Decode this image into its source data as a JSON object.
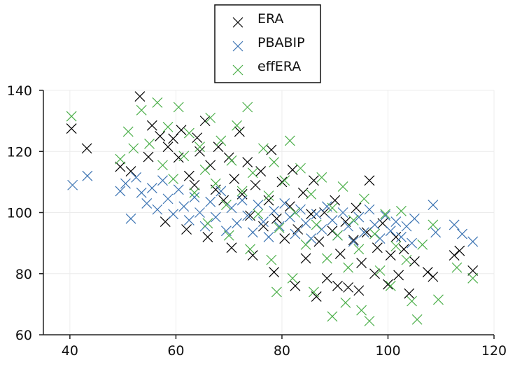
{
  "chart_data": {
    "type": "scatter",
    "title": "",
    "xlabel": "",
    "ylabel": "",
    "xlim": [
      35,
      120
    ],
    "ylim": [
      60,
      140
    ],
    "xticks": [
      40,
      60,
      80,
      100,
      120
    ],
    "yticks": [
      60,
      80,
      100,
      120,
      140
    ],
    "grid": true,
    "legend_position": "top-center",
    "marker": "x",
    "series": [
      {
        "name": "ERA",
        "color": "#000000",
        "points": [
          [
            40.3,
            127.5
          ],
          [
            43.2,
            121.0
          ],
          [
            49.5,
            115.0
          ],
          [
            51.5,
            113.5
          ],
          [
            53.2,
            138.0
          ],
          [
            54.8,
            118.2
          ],
          [
            55.5,
            128.5
          ],
          [
            57.0,
            125.0
          ],
          [
            58.5,
            121.5
          ],
          [
            59.5,
            124.2
          ],
          [
            60.5,
            118.0
          ],
          [
            61.0,
            127.0
          ],
          [
            62.5,
            112.0
          ],
          [
            63.5,
            109.0
          ],
          [
            64.0,
            124.5
          ],
          [
            64.5,
            120.0
          ],
          [
            65.5,
            130.0
          ],
          [
            66.5,
            115.5
          ],
          [
            67.5,
            107.5
          ],
          [
            68.0,
            121.5
          ],
          [
            69.0,
            104.0
          ],
          [
            70.0,
            118.0
          ],
          [
            71.0,
            111.0
          ],
          [
            72.0,
            126.5
          ],
          [
            72.5,
            106.0
          ],
          [
            73.5,
            116.5
          ],
          [
            74.0,
            99.0
          ],
          [
            75.0,
            109.0
          ],
          [
            76.0,
            113.5
          ],
          [
            76.5,
            95.5
          ],
          [
            77.5,
            104.0
          ],
          [
            78.0,
            120.5
          ],
          [
            79.0,
            98.0
          ],
          [
            80.0,
            110.0
          ],
          [
            80.5,
            91.5
          ],
          [
            81.5,
            102.0
          ],
          [
            82.0,
            114.0
          ],
          [
            83.0,
            94.5
          ],
          [
            84.0,
            106.5
          ],
          [
            84.5,
            85.0
          ],
          [
            85.5,
            99.5
          ],
          [
            86.0,
            110.5
          ],
          [
            87.0,
            90.5
          ],
          [
            88.0,
            100.0
          ],
          [
            88.5,
            78.5
          ],
          [
            89.5,
            94.0
          ],
          [
            90.0,
            104.0
          ],
          [
            91.0,
            86.5
          ],
          [
            92.0,
            97.0
          ],
          [
            92.5,
            75.5
          ],
          [
            93.5,
            91.0
          ],
          [
            94.0,
            101.5
          ],
          [
            95.0,
            83.5
          ],
          [
            96.0,
            93.5
          ],
          [
            96.5,
            110.5
          ],
          [
            97.5,
            80.0
          ],
          [
            98.0,
            88.5
          ],
          [
            99.0,
            96.5
          ],
          [
            100.0,
            76.5
          ],
          [
            100.5,
            86.0
          ],
          [
            101.5,
            92.0
          ],
          [
            102.0,
            79.5
          ],
          [
            103.0,
            88.0
          ],
          [
            104.0,
            73.5
          ],
          [
            105.0,
            84.0
          ],
          [
            107.5,
            80.5
          ],
          [
            108.5,
            79.0
          ],
          [
            112.5,
            86.0
          ],
          [
            113.5,
            87.5
          ],
          [
            116.0,
            81.0
          ],
          [
            58.0,
            97.0
          ],
          [
            62.0,
            94.5
          ],
          [
            66.0,
            92.0
          ],
          [
            70.5,
            88.5
          ],
          [
            74.5,
            86.0
          ],
          [
            78.5,
            80.5
          ],
          [
            82.5,
            76.0
          ],
          [
            86.5,
            72.5
          ],
          [
            90.5,
            76.0
          ],
          [
            94.5,
            74.5
          ]
        ]
      },
      {
        "name": "PBABIP",
        "color": "#3b73b2",
        "points": [
          [
            40.5,
            109.0
          ],
          [
            43.3,
            112.0
          ],
          [
            49.5,
            107.0
          ],
          [
            50.5,
            109.5
          ],
          [
            51.5,
            98.0
          ],
          [
            52.5,
            111.5
          ],
          [
            53.5,
            106.5
          ],
          [
            54.5,
            103.0
          ],
          [
            55.5,
            108.0
          ],
          [
            56.5,
            101.0
          ],
          [
            57.5,
            110.5
          ],
          [
            58.5,
            104.5
          ],
          [
            59.5,
            99.5
          ],
          [
            60.5,
            107.5
          ],
          [
            61.5,
            102.0
          ],
          [
            62.5,
            97.5
          ],
          [
            63.5,
            105.0
          ],
          [
            64.5,
            100.0
          ],
          [
            65.5,
            95.5
          ],
          [
            66.5,
            103.5
          ],
          [
            67.5,
            98.5
          ],
          [
            68.5,
            107.0
          ],
          [
            69.5,
            94.0
          ],
          [
            70.5,
            101.5
          ],
          [
            71.5,
            96.5
          ],
          [
            72.5,
            104.0
          ],
          [
            73.5,
            99.0
          ],
          [
            74.5,
            93.5
          ],
          [
            75.5,
            102.5
          ],
          [
            76.5,
            97.0
          ],
          [
            77.5,
            92.0
          ],
          [
            78.5,
            100.5
          ],
          [
            79.5,
            95.5
          ],
          [
            80.5,
            103.0
          ],
          [
            81.5,
            98.5
          ],
          [
            82.5,
            93.0
          ],
          [
            83.5,
            101.0
          ],
          [
            84.5,
            96.5
          ],
          [
            85.5,
            91.5
          ],
          [
            86.5,
            99.5
          ],
          [
            87.5,
            94.5
          ],
          [
            88.5,
            102.0
          ],
          [
            89.5,
            97.5
          ],
          [
            90.5,
            92.5
          ],
          [
            91.5,
            100.0
          ],
          [
            92.5,
            95.5
          ],
          [
            93.5,
            90.5
          ],
          [
            94.5,
            98.5
          ],
          [
            95.5,
            93.5
          ],
          [
            96.5,
            101.0
          ],
          [
            97.5,
            96.0
          ],
          [
            98.5,
            91.5
          ],
          [
            99.5,
            99.0
          ],
          [
            100.5,
            94.0
          ],
          [
            101.5,
            97.0
          ],
          [
            102.5,
            92.0
          ],
          [
            103.5,
            95.5
          ],
          [
            104.5,
            90.0
          ],
          [
            105.0,
            98.0
          ],
          [
            108.5,
            102.5
          ],
          [
            109.0,
            93.5
          ],
          [
            112.5,
            96.0
          ],
          [
            114.0,
            93.0
          ],
          [
            116.0,
            90.5
          ]
        ]
      },
      {
        "name": "effERA",
        "color": "#4caf4a",
        "points": [
          [
            40.3,
            131.5
          ],
          [
            49.5,
            117.5
          ],
          [
            51.0,
            126.5
          ],
          [
            52.0,
            121.0
          ],
          [
            53.5,
            133.5
          ],
          [
            55.0,
            122.5
          ],
          [
            56.5,
            136.0
          ],
          [
            57.5,
            115.5
          ],
          [
            58.5,
            128.0
          ],
          [
            59.5,
            111.0
          ],
          [
            60.5,
            134.5
          ],
          [
            61.5,
            118.5
          ],
          [
            62.5,
            126.0
          ],
          [
            63.5,
            106.5
          ],
          [
            64.5,
            121.5
          ],
          [
            65.5,
            114.0
          ],
          [
            66.5,
            131.0
          ],
          [
            67.5,
            109.5
          ],
          [
            68.5,
            123.5
          ],
          [
            69.5,
            102.5
          ],
          [
            70.5,
            117.0
          ],
          [
            71.5,
            128.5
          ],
          [
            72.5,
            107.0
          ],
          [
            73.5,
            134.5
          ],
          [
            74.5,
            113.0
          ],
          [
            75.5,
            99.5
          ],
          [
            76.5,
            121.0
          ],
          [
            77.5,
            105.5
          ],
          [
            78.5,
            116.5
          ],
          [
            79.5,
            95.0
          ],
          [
            80.5,
            110.5
          ],
          [
            81.5,
            123.5
          ],
          [
            82.5,
            100.0
          ],
          [
            83.5,
            114.5
          ],
          [
            84.5,
            89.5
          ],
          [
            85.5,
            106.0
          ],
          [
            86.5,
            96.0
          ],
          [
            87.5,
            111.5
          ],
          [
            88.5,
            85.0
          ],
          [
            89.5,
            101.5
          ],
          [
            90.5,
            92.5
          ],
          [
            91.5,
            108.5
          ],
          [
            92.5,
            82.0
          ],
          [
            93.5,
            97.5
          ],
          [
            94.5,
            88.0
          ],
          [
            95.5,
            104.5
          ],
          [
            96.5,
            64.5
          ],
          [
            97.5,
            93.0
          ],
          [
            98.5,
            81.0
          ],
          [
            99.5,
            99.5
          ],
          [
            100.5,
            76.0
          ],
          [
            101.5,
            89.0
          ],
          [
            102.5,
            100.5
          ],
          [
            103.5,
            84.5
          ],
          [
            104.5,
            71.0
          ],
          [
            105.5,
            65.0
          ],
          [
            106.5,
            89.5
          ],
          [
            108.5,
            96.0
          ],
          [
            109.5,
            71.5
          ],
          [
            113.0,
            82.0
          ],
          [
            116.0,
            78.5
          ],
          [
            66.0,
            96.5
          ],
          [
            70.0,
            92.5
          ],
          [
            74.0,
            88.0
          ],
          [
            78.0,
            84.5
          ],
          [
            79.0,
            74.0
          ],
          [
            82.0,
            78.5
          ],
          [
            86.0,
            74.0
          ],
          [
            89.5,
            66.0
          ],
          [
            92.0,
            70.5
          ],
          [
            95.0,
            68.0
          ]
        ]
      }
    ]
  }
}
